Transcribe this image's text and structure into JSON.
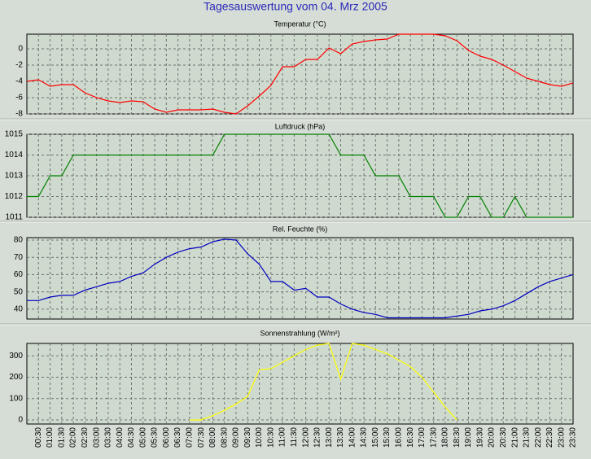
{
  "title": "Tagesauswertung vom 04. Mrz 2005",
  "chart_data": [
    {
      "type": "line",
      "title": "Temperatur (°C)",
      "ylim": [
        -8,
        1.8
      ],
      "yticks": [
        -8,
        -6,
        -4,
        -2,
        0
      ],
      "grid": true,
      "series": [
        {
          "color": "#ff0000",
          "values": [
            -4.0,
            -3.8,
            -4.6,
            -4.4,
            -4.4,
            -5.4,
            -6.0,
            -6.4,
            -6.6,
            -6.4,
            -6.5,
            -7.4,
            -7.8,
            -7.5,
            -7.5,
            -7.5,
            -7.4,
            -7.8,
            -8.0,
            -7.0,
            -5.8,
            -4.5,
            -2.2,
            -2.2,
            -1.3,
            -1.3,
            0.1,
            -0.6,
            0.6,
            0.9,
            1.1,
            1.2,
            1.8,
            1.8,
            1.8,
            1.8,
            1.6,
            1.0,
            -0.2,
            -0.9,
            -1.3,
            -2.0,
            -2.8,
            -3.6,
            -4.0,
            -4.4,
            -4.6,
            -4.2
          ]
        }
      ]
    },
    {
      "type": "line",
      "title": "Luftdruck (hPa)",
      "ylim": [
        1011,
        1015
      ],
      "yticks": [
        1011,
        1012,
        1013,
        1014,
        1015
      ],
      "grid": true,
      "series": [
        {
          "color": "#008000",
          "values": [
            1012,
            1012,
            1013,
            1013,
            1014,
            1014,
            1014,
            1014,
            1014,
            1014,
            1014,
            1014,
            1014,
            1014,
            1014,
            1014,
            1014,
            1015,
            1015,
            1015,
            1015,
            1015,
            1015,
            1015,
            1015,
            1015,
            1015,
            1014,
            1014,
            1014,
            1013,
            1013,
            1013,
            1012,
            1012,
            1012,
            1011,
            1011,
            1012,
            1012,
            1011,
            1011,
            1012,
            1011,
            1011,
            1011,
            1011,
            1011
          ]
        }
      ]
    },
    {
      "type": "line",
      "title": "Rel. Feuchte (%)",
      "ylim": [
        34.3,
        81.4
      ],
      "yticks": [
        40,
        50,
        60,
        70,
        80
      ],
      "grid": true,
      "series": [
        {
          "color": "#0000c0",
          "values": [
            45,
            45,
            47,
            48,
            48,
            51,
            53,
            55,
            56,
            59,
            61,
            66,
            70,
            73,
            75,
            76,
            79,
            80.5,
            80,
            72,
            66,
            56,
            56,
            51,
            52,
            47,
            47,
            43,
            40,
            38,
            37,
            35,
            35,
            35,
            35,
            35,
            35,
            36,
            37,
            39,
            40,
            42,
            45,
            49,
            53,
            56,
            58,
            60
          ]
        }
      ]
    },
    {
      "type": "line",
      "title": "Sonnenstrahlung (W/m²)",
      "ylim": [
        -19,
        358
      ],
      "yticks": [
        0,
        100,
        200,
        300
      ],
      "grid": true,
      "categories": [
        null,
        "00:30",
        "01:00",
        "01:30",
        "02:00",
        "02:30",
        "03:00",
        "03:30",
        "04:00",
        "04:30",
        "05:00",
        "05:30",
        "06:00",
        "06:30",
        "07:00",
        "07:30",
        "08:00",
        "08:30",
        "09:00",
        "09:30",
        "10:00",
        "10:30",
        "11:00",
        "11:30",
        "12:00",
        "12:30",
        "13:00",
        "13:30",
        "14:00",
        "14:30",
        "15:00",
        "15:30",
        "16:00",
        "16:30",
        "17:00",
        "17:30",
        "18:00",
        "18:30",
        "19:00",
        "19:30",
        "20:00",
        "20:30",
        "21:00",
        "21:30",
        "22:00",
        "22:30",
        "23:00",
        "23:30"
      ],
      "series": [
        {
          "color": "#ffff00",
          "values": [
            null,
            null,
            null,
            null,
            null,
            null,
            null,
            null,
            null,
            null,
            null,
            null,
            null,
            null,
            0,
            0,
            20,
            45,
            75,
            110,
            235,
            240,
            270,
            300,
            330,
            350,
            358,
            190,
            358,
            350,
            330,
            310,
            280,
            250,
            200,
            130,
            60,
            0,
            null,
            null,
            null,
            null,
            null,
            null,
            null,
            null,
            null,
            null
          ]
        }
      ]
    }
  ]
}
